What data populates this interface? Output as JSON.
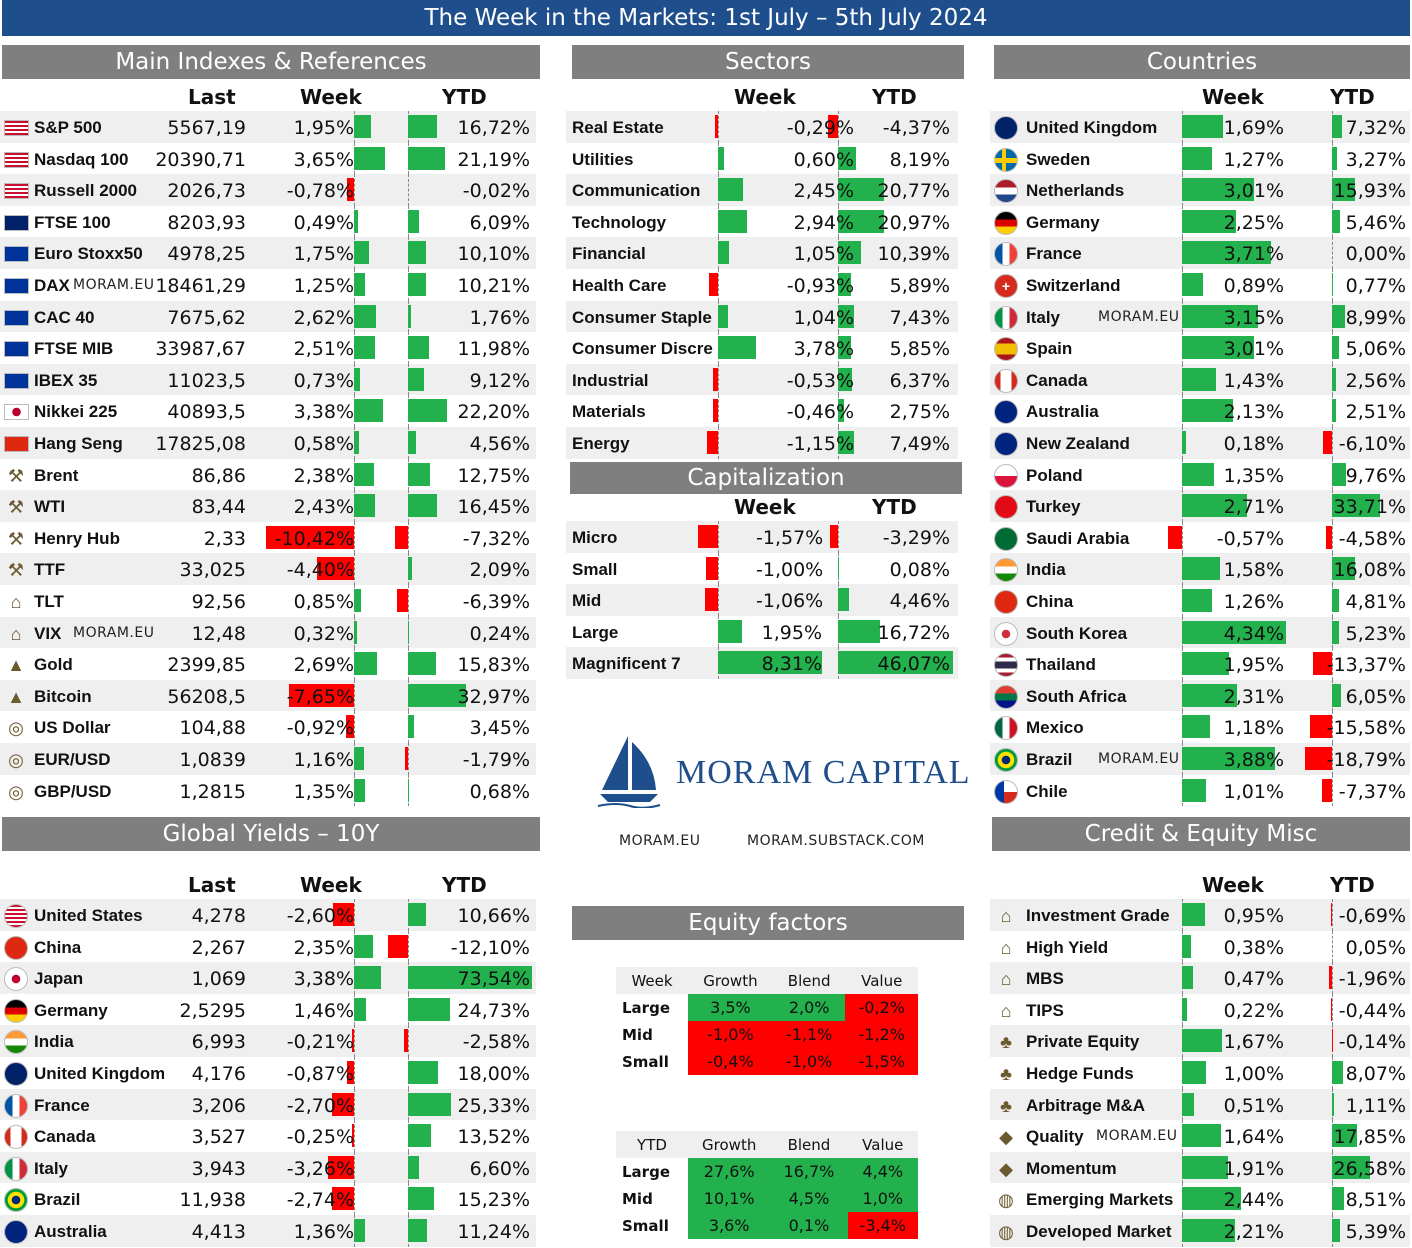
{
  "title": "The Week in the Markets: 1st July – 5th July 2024",
  "sections": {
    "main": "Main Indexes & References",
    "sectors": "Sectors",
    "countries": "Countries",
    "cap": "Capitalization",
    "yields": "Global Yields – 10Y",
    "credit": "Credit & Equity Misc",
    "factors": "Equity factors"
  },
  "headers": {
    "last": "Last",
    "week": "Week",
    "ytd": "YTD"
  },
  "watermark": "MORAM.EU",
  "logo": {
    "name": "MORAM CAPITAL",
    "link1": "MORAM.EU",
    "link2": "MORAM.SUBSTACK.COM",
    "colors": {
      "brand": "#1f4e8c"
    }
  },
  "colors": {
    "positive": "#22b14c",
    "negative": "#ff0000",
    "header": "#7f7f7f",
    "banner": "#1f4e8c"
  },
  "main_rows": [
    {
      "name": "S&P 500",
      "icon": "us-flag",
      "last": "5567,19",
      "week": "1,95%",
      "w": 1.95,
      "ytd": "16,72%",
      "y": 16.72
    },
    {
      "name": "Nasdaq 100",
      "icon": "us-flag",
      "last": "20390,71",
      "week": "3,65%",
      "w": 3.65,
      "ytd": "21,19%",
      "y": 21.19
    },
    {
      "name": "Russell 2000",
      "icon": "us-flag",
      "last": "2026,73",
      "week": "-0,78%",
      "w": -0.78,
      "ytd": "-0,02%",
      "y": -0.02
    },
    {
      "name": "FTSE 100",
      "icon": "uk-flag",
      "last": "8203,93",
      "week": "0,49%",
      "w": 0.49,
      "ytd": "6,09%",
      "y": 6.09
    },
    {
      "name": "Euro Stoxx50",
      "icon": "eu-flag",
      "last": "4978,25",
      "week": "1,75%",
      "w": 1.75,
      "ytd": "10,10%",
      "y": 10.1
    },
    {
      "name": "DAX",
      "icon": "eu-flag",
      "last": "18461,29",
      "week": "1,25%",
      "w": 1.25,
      "ytd": "10,21%",
      "y": 10.21,
      "wm": true
    },
    {
      "name": "CAC 40",
      "icon": "eu-flag",
      "last": "7675,62",
      "week": "2,62%",
      "w": 2.62,
      "ytd": "1,76%",
      "y": 1.76
    },
    {
      "name": "FTSE MIB",
      "icon": "eu-flag",
      "last": "33987,67",
      "week": "2,51%",
      "w": 2.51,
      "ytd": "11,98%",
      "y": 11.98
    },
    {
      "name": "IBEX 35",
      "icon": "eu-flag",
      "last": "11023,5",
      "week": "0,73%",
      "w": 0.73,
      "ytd": "9,12%",
      "y": 9.12
    },
    {
      "name": "Nikkei 225",
      "icon": "japan-flag",
      "last": "40893,5",
      "week": "3,38%",
      "w": 3.38,
      "ytd": "22,20%",
      "y": 22.2
    },
    {
      "name": "Hang Seng",
      "icon": "china-flag",
      "last": "17825,08",
      "week": "0,58%",
      "w": 0.58,
      "ytd": "4,56%",
      "y": 4.56
    },
    {
      "name": "Brent",
      "icon": "oil-rig-icon",
      "last": "86,86",
      "week": "2,38%",
      "w": 2.38,
      "ytd": "12,75%",
      "y": 12.75
    },
    {
      "name": "WTI",
      "icon": "oil-rig-icon",
      "last": "83,44",
      "week": "2,43%",
      "w": 2.43,
      "ytd": "16,45%",
      "y": 16.45
    },
    {
      "name": "Henry Hub",
      "icon": "oil-rig-icon",
      "last": "2,33",
      "week": "-10,42%",
      "w": -10.42,
      "ytd": "-7,32%",
      "y": -7.32
    },
    {
      "name": "TTF",
      "icon": "oil-rig-icon",
      "last": "33,025",
      "week": "-4,40%",
      "w": -4.4,
      "ytd": "2,09%",
      "y": 2.09
    },
    {
      "name": "TLT",
      "icon": "bank-icon",
      "last": "92,56",
      "week": "0,85%",
      "w": 0.85,
      "ytd": "-6,39%",
      "y": -6.39
    },
    {
      "name": "VIX",
      "icon": "bank-icon",
      "last": "12,48",
      "week": "0,32%",
      "w": 0.32,
      "ytd": "0,24%",
      "y": 0.24,
      "wm": true
    },
    {
      "name": "Gold",
      "icon": "gold-icon",
      "last": "2399,85",
      "week": "2,69%",
      "w": 2.69,
      "ytd": "15,83%",
      "y": 15.83
    },
    {
      "name": "Bitcoin",
      "icon": "gold-icon",
      "last": "56208,5",
      "week": "-7,65%",
      "w": -7.65,
      "ytd": "32,97%",
      "y": 32.97
    },
    {
      "name": "US Dollar",
      "icon": "coins-icon",
      "last": "104,88",
      "week": "-0,92%",
      "w": -0.92,
      "ytd": "3,45%",
      "y": 3.45
    },
    {
      "name": "EUR/USD",
      "icon": "coins-icon",
      "last": "1,0839",
      "week": "1,16%",
      "w": 1.16,
      "ytd": "-1,79%",
      "y": -1.79
    },
    {
      "name": "GBP/USD",
      "icon": "coins-icon",
      "last": "1,2815",
      "week": "1,35%",
      "w": 1.35,
      "ytd": "0,68%",
      "y": 0.68
    }
  ],
  "sector_rows": [
    {
      "name": "Real Estate",
      "week": "-0,29%",
      "w": -0.29,
      "ytd": "-4,37%",
      "y": -4.37
    },
    {
      "name": "Utilities",
      "week": "0,60%",
      "w": 0.6,
      "ytd": "8,19%",
      "y": 8.19
    },
    {
      "name": "Communication",
      "week": "2,45%",
      "w": 2.45,
      "ytd": "20,77%",
      "y": 20.77
    },
    {
      "name": "Technology",
      "week": "2,94%",
      "w": 2.94,
      "ytd": "20,97%",
      "y": 20.97
    },
    {
      "name": "Financial",
      "week": "1,05%",
      "w": 1.05,
      "ytd": "10,39%",
      "y": 10.39
    },
    {
      "name": "Health Care",
      "week": "-0,93%",
      "w": -0.93,
      "ytd": "5,89%",
      "y": 5.89
    },
    {
      "name": "Consumer Staple",
      "week": "1,04%",
      "w": 1.04,
      "ytd": "7,43%",
      "y": 7.43
    },
    {
      "name": "Consumer Discre",
      "week": "3,78%",
      "w": 3.78,
      "ytd": "5,85%",
      "y": 5.85
    },
    {
      "name": "Industrial",
      "week": "-0,53%",
      "w": -0.53,
      "ytd": "6,37%",
      "y": 6.37
    },
    {
      "name": "Materials",
      "week": "-0,46%",
      "w": -0.46,
      "ytd": "2,75%",
      "y": 2.75
    },
    {
      "name": "Energy",
      "week": "-1,15%",
      "w": -1.15,
      "ytd": "7,49%",
      "y": 7.49
    }
  ],
  "cap_rows": [
    {
      "name": "Micro",
      "week": "-1,57%",
      "w": -1.57,
      "ytd": "-3,29%",
      "y": -3.29
    },
    {
      "name": "Small",
      "week": "-1,00%",
      "w": -1.0,
      "ytd": "0,08%",
      "y": 0.08
    },
    {
      "name": "Mid",
      "week": "-1,06%",
      "w": -1.06,
      "ytd": "4,46%",
      "y": 4.46
    },
    {
      "name": "Large",
      "week": "1,95%",
      "w": 1.95,
      "ytd": "16,72%",
      "y": 16.72
    },
    {
      "name": "Magnificent 7",
      "week": "8,31%",
      "w": 8.31,
      "ytd": "46,07%",
      "y": 46.07
    }
  ],
  "country_rows": [
    {
      "name": "United Kingdom",
      "icon": "uk-flag",
      "week": "1,69%",
      "w": 1.69,
      "ytd": "7,32%",
      "y": 7.32
    },
    {
      "name": "Sweden",
      "icon": "sweden-flag",
      "week": "1,27%",
      "w": 1.27,
      "ytd": "3,27%",
      "y": 3.27
    },
    {
      "name": "Netherlands",
      "icon": "netherlands-flag",
      "week": "3,01%",
      "w": 3.01,
      "ytd": "15,93%",
      "y": 15.93
    },
    {
      "name": "Germany",
      "icon": "germany-flag",
      "week": "2,25%",
      "w": 2.25,
      "ytd": "5,46%",
      "y": 5.46
    },
    {
      "name": "France",
      "icon": "france-flag",
      "week": "3,71%",
      "w": 3.71,
      "ytd": "0,00%",
      "y": 0.0
    },
    {
      "name": "Switzerland",
      "icon": "switzerland-flag",
      "week": "0,89%",
      "w": 0.89,
      "ytd": "0,77%",
      "y": 0.77
    },
    {
      "name": "Italy",
      "icon": "italy-flag",
      "week": "3,15%",
      "w": 3.15,
      "ytd": "8,99%",
      "y": 8.99,
      "wm": true
    },
    {
      "name": "Spain",
      "icon": "spain-flag",
      "week": "3,01%",
      "w": 3.01,
      "ytd": "5,06%",
      "y": 5.06
    },
    {
      "name": "Canada",
      "icon": "canada-flag",
      "week": "1,43%",
      "w": 1.43,
      "ytd": "2,56%",
      "y": 2.56
    },
    {
      "name": "Australia",
      "icon": "australia-flag",
      "week": "2,13%",
      "w": 2.13,
      "ytd": "2,51%",
      "y": 2.51
    },
    {
      "name": "New Zealand",
      "icon": "new-zealand-flag",
      "week": "0,18%",
      "w": 0.18,
      "ytd": "-6,10%",
      "y": -6.1
    },
    {
      "name": "Poland",
      "icon": "poland-flag",
      "week": "1,35%",
      "w": 1.35,
      "ytd": "9,76%",
      "y": 9.76
    },
    {
      "name": "Turkey",
      "icon": "turkey-flag",
      "week": "2,71%",
      "w": 2.71,
      "ytd": "33,71%",
      "y": 33.71
    },
    {
      "name": "Saudi Arabia",
      "icon": "saudi-flag",
      "week": "-0,57%",
      "w": -0.57,
      "ytd": "-4,58%",
      "y": -4.58
    },
    {
      "name": "India",
      "icon": "india-flag",
      "week": "1,58%",
      "w": 1.58,
      "ytd": "16,08%",
      "y": 16.08
    },
    {
      "name": "China",
      "icon": "china-flag",
      "week": "1,26%",
      "w": 1.26,
      "ytd": "4,81%",
      "y": 4.81
    },
    {
      "name": "South Korea",
      "icon": "korea-flag",
      "week": "4,34%",
      "w": 4.34,
      "ytd": "5,23%",
      "y": 5.23
    },
    {
      "name": "Thailand",
      "icon": "thailand-flag",
      "week": "1,95%",
      "w": 1.95,
      "ytd": "-13,37%",
      "y": -13.37
    },
    {
      "name": "South Africa",
      "icon": "south-africa-flag",
      "week": "2,31%",
      "w": 2.31,
      "ytd": "6,05%",
      "y": 6.05
    },
    {
      "name": "Mexico",
      "icon": "mexico-flag",
      "week": "1,18%",
      "w": 1.18,
      "ytd": "-15,58%",
      "y": -15.58
    },
    {
      "name": "Brazil",
      "icon": "brazil-flag",
      "week": "3,88%",
      "w": 3.88,
      "ytd": "-18,79%",
      "y": -18.79,
      "wm": true
    },
    {
      "name": "Chile",
      "icon": "chile-flag",
      "week": "1,01%",
      "w": 1.01,
      "ytd": "-7,37%",
      "y": -7.37
    }
  ],
  "yield_rows": [
    {
      "name": "United States",
      "icon": "us-flag",
      "last": "4,278",
      "week": "-2,60%",
      "w": -2.6,
      "ytd": "10,66%",
      "y": 10.66
    },
    {
      "name": "China",
      "icon": "china-flag",
      "last": "2,267",
      "week": "2,35%",
      "w": 2.35,
      "ytd": "-12,10%",
      "y": -12.1
    },
    {
      "name": "Japan",
      "icon": "japan-flag",
      "last": "1,069",
      "week": "3,38%",
      "w": 3.38,
      "ytd": "73,54%",
      "y": 73.54
    },
    {
      "name": "Germany",
      "icon": "germany-flag",
      "last": "2,5295",
      "week": "1,46%",
      "w": 1.46,
      "ytd": "24,73%",
      "y": 24.73
    },
    {
      "name": "India",
      "icon": "india-flag",
      "last": "6,993",
      "week": "-0,21%",
      "w": -0.21,
      "ytd": "-2,58%",
      "y": -2.58
    },
    {
      "name": "United Kingdom",
      "icon": "uk-flag",
      "last": "4,176",
      "week": "-0,87%",
      "w": -0.87,
      "ytd": "18,00%",
      "y": 18.0
    },
    {
      "name": "France",
      "icon": "france-flag",
      "last": "3,206",
      "week": "-2,70%",
      "w": -2.7,
      "ytd": "25,33%",
      "y": 25.33
    },
    {
      "name": "Canada",
      "icon": "canada-flag",
      "last": "3,527",
      "week": "-0,25%",
      "w": -0.25,
      "ytd": "13,52%",
      "y": 13.52
    },
    {
      "name": "Italy",
      "icon": "italy-flag",
      "last": "3,943",
      "week": "-3,26%",
      "w": -3.26,
      "ytd": "6,60%",
      "y": 6.6
    },
    {
      "name": "Brazil",
      "icon": "brazil-flag",
      "last": "11,938",
      "week": "-2,74%",
      "w": -2.74,
      "ytd": "15,23%",
      "y": 15.23
    },
    {
      "name": "Australia",
      "icon": "australia-flag",
      "last": "4,413",
      "week": "1,36%",
      "w": 1.36,
      "ytd": "11,24%",
      "y": 11.24
    }
  ],
  "credit_rows": [
    {
      "name": "Investment Grade",
      "icon": "bank-icon",
      "week": "0,95%",
      "w": 0.95,
      "ytd": "-0,69%",
      "y": -0.69
    },
    {
      "name": "High Yield",
      "icon": "bank-icon",
      "week": "0,38%",
      "w": 0.38,
      "ytd": "0,05%",
      "y": 0.05
    },
    {
      "name": "MBS",
      "icon": "bank-icon",
      "week": "0,47%",
      "w": 0.47,
      "ytd": "-1,96%",
      "y": -1.96
    },
    {
      "name": "TIPS",
      "icon": "bank-icon",
      "week": "0,22%",
      "w": 0.22,
      "ytd": "-0,44%",
      "y": -0.44
    },
    {
      "name": "Private Equity",
      "icon": "tree-icon",
      "week": "1,67%",
      "w": 1.67,
      "ytd": "-0,14%",
      "y": -0.14
    },
    {
      "name": "Hedge Funds",
      "icon": "tree-icon",
      "week": "1,00%",
      "w": 1.0,
      "ytd": "8,07%",
      "y": 8.07
    },
    {
      "name": "Arbitrage M&A",
      "icon": "tree-icon",
      "week": "0,51%",
      "w": 0.51,
      "ytd": "1,11%",
      "y": 1.11
    },
    {
      "name": "Quality",
      "icon": "diamond-icon",
      "week": "1,64%",
      "w": 1.64,
      "ytd": "17,85%",
      "y": 17.85,
      "wm": true
    },
    {
      "name": "Momentum",
      "icon": "diamond-icon",
      "week": "1,91%",
      "w": 1.91,
      "ytd": "26,58%",
      "y": 26.58
    },
    {
      "name": "Emerging Markets",
      "icon": "globe-icon",
      "week": "2,44%",
      "w": 2.44,
      "ytd": "8,51%",
      "y": 8.51
    },
    {
      "name": "Developed Market",
      "icon": "globe-icon",
      "week": "2,21%",
      "w": 2.21,
      "ytd": "5,39%",
      "y": 5.39
    }
  ],
  "factors": {
    "week": {
      "label": "Week",
      "cols": [
        "Growth",
        "Blend",
        "Value"
      ],
      "rows": [
        {
          "name": "Large",
          "vals": [
            "3,5%",
            "2,0%",
            "-0,2%"
          ],
          "pos": [
            true,
            true,
            false
          ]
        },
        {
          "name": "Mid",
          "vals": [
            "-1,0%",
            "-1,1%",
            "-1,2%"
          ],
          "pos": [
            false,
            false,
            false
          ]
        },
        {
          "name": "Small",
          "vals": [
            "-0,4%",
            "-1,0%",
            "-1,5%"
          ],
          "pos": [
            false,
            false,
            false
          ]
        }
      ]
    },
    "ytd": {
      "label": "YTD",
      "cols": [
        "Growth",
        "Blend",
        "Value"
      ],
      "rows": [
        {
          "name": "Large",
          "vals": [
            "27,6%",
            "16,7%",
            "4,4%"
          ],
          "pos": [
            true,
            true,
            true
          ]
        },
        {
          "name": "Mid",
          "vals": [
            "10,1%",
            "4,5%",
            "1,0%"
          ],
          "pos": [
            true,
            true,
            true
          ]
        },
        {
          "name": "Small",
          "vals": [
            "3,6%",
            "0,1%",
            "-3,4%"
          ],
          "pos": [
            true,
            true,
            false
          ]
        }
      ]
    }
  }
}
